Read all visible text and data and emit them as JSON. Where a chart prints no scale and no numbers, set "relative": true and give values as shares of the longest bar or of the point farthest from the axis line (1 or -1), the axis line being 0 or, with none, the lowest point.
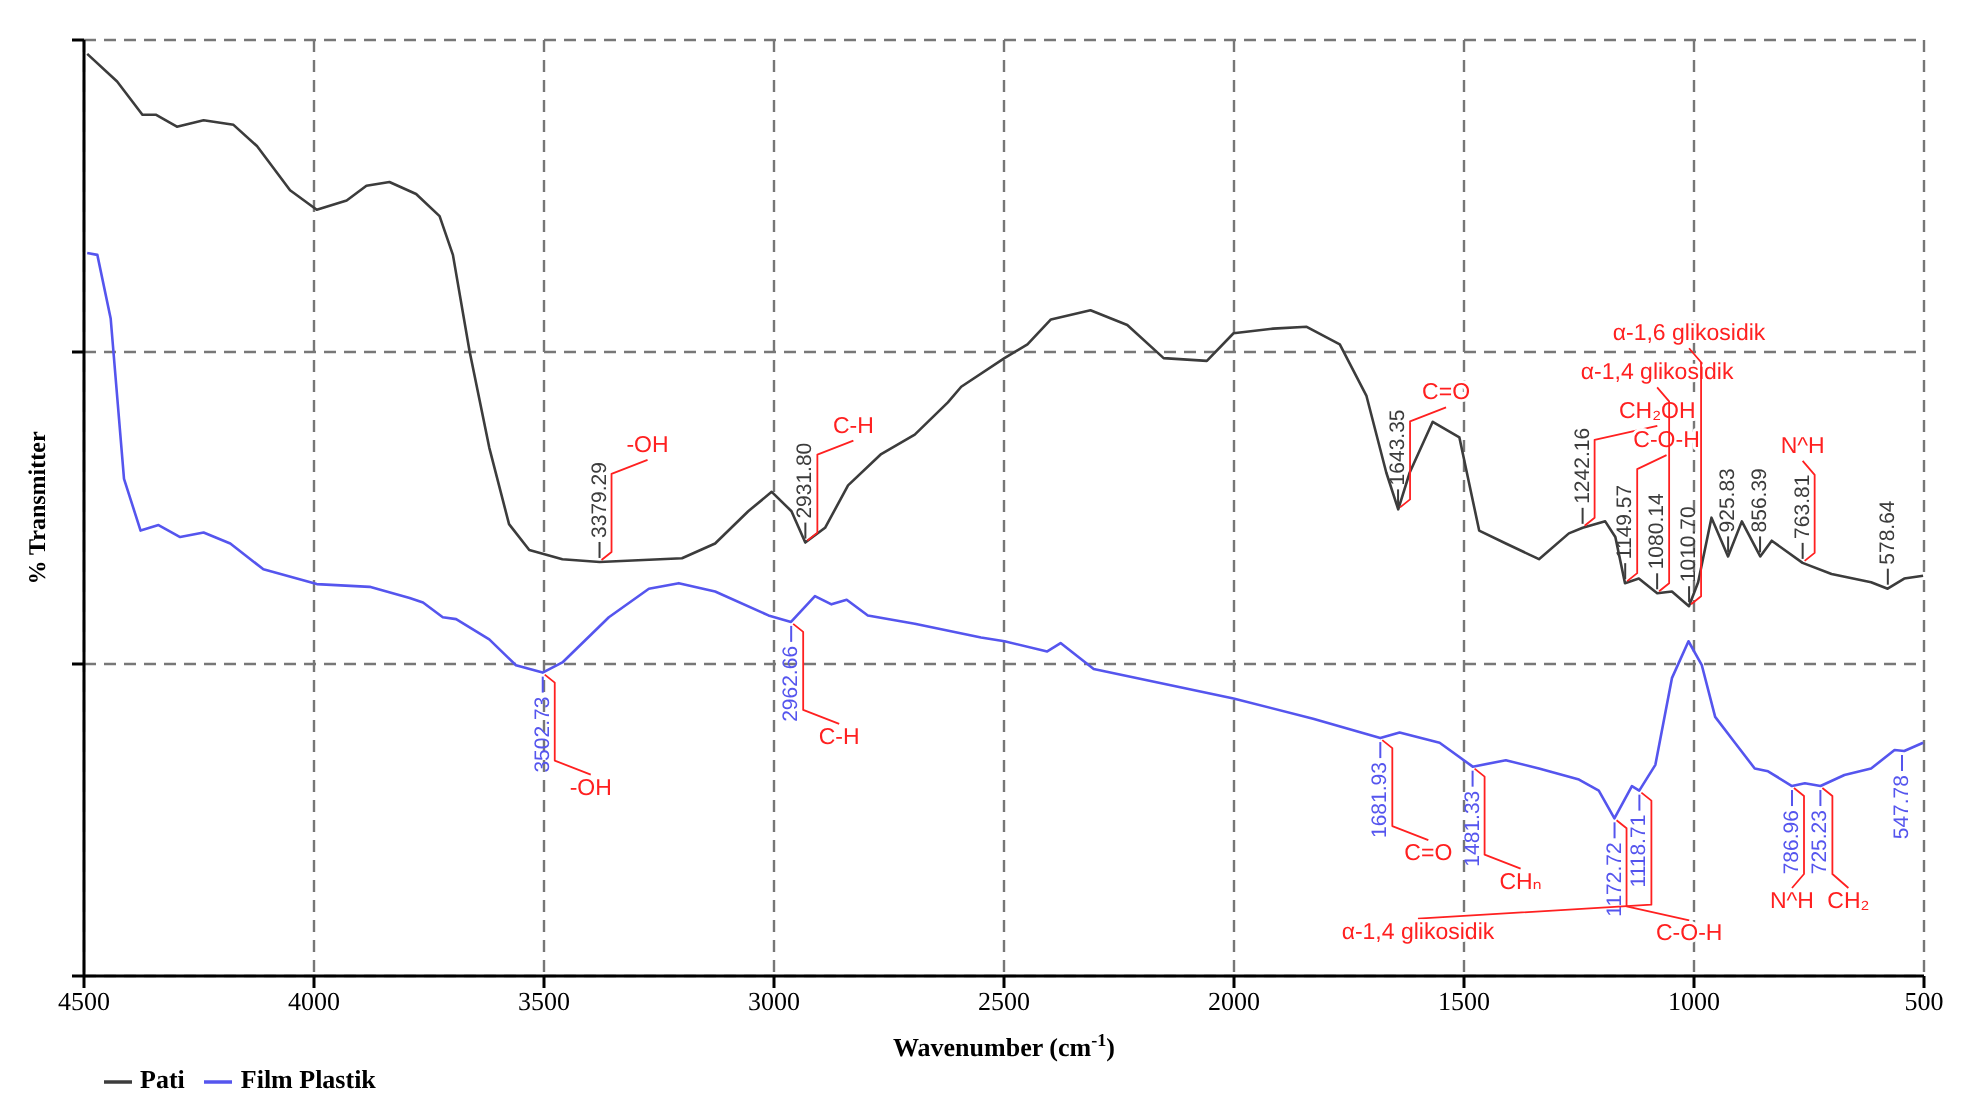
{
  "chart_data": {
    "type": "line",
    "relative": true,
    "xlabel": "Wavenumber (cm$^{-1}$)",
    "ylabel": "% Transmitter",
    "xlim": [
      4500,
      500
    ],
    "xticks": [
      4500,
      4000,
      3500,
      3000,
      2500,
      2000,
      1500,
      1000,
      500
    ],
    "grid": true,
    "legend": "bottom left",
    "series": [
      {
        "name": "Pati",
        "color": "#3c3c3c",
        "x": [
          4493,
          4428,
          4373,
          4344,
          4298,
          4240,
          4175,
          4124,
          4052,
          3994,
          3929,
          3886,
          3836,
          3778,
          3727,
          3698,
          3662,
          3619,
          3576,
          3532,
          3460,
          3379,
          3200,
          3128,
          3056,
          3005,
          2962,
          2932,
          2889,
          2839,
          2767,
          2694,
          2622,
          2593,
          2499,
          2449,
          2398,
          2312,
          2232,
          2153,
          2059,
          2001,
          1915,
          1842,
          1770,
          1712,
          1669,
          1643,
          1618,
          1568,
          1510,
          1467,
          1409,
          1337,
          1272,
          1242,
          1193,
          1171,
          1150,
          1120,
          1080,
          1048,
          1011,
          991,
          962,
          926,
          896,
          856,
          831,
          764,
          701,
          615,
          579,
          543,
          502
        ],
        "values": [
          1.0,
          0.97,
          0.934,
          0.934,
          0.921,
          0.928,
          0.923,
          0.9,
          0.852,
          0.831,
          0.841,
          0.857,
          0.861,
          0.848,
          0.824,
          0.782,
          0.678,
          0.573,
          0.49,
          0.462,
          0.452,
          0.449,
          0.453,
          0.469,
          0.504,
          0.525,
          0.504,
          0.47,
          0.486,
          0.532,
          0.566,
          0.587,
          0.622,
          0.639,
          0.67,
          0.685,
          0.712,
          0.722,
          0.706,
          0.67,
          0.667,
          0.697,
          0.702,
          0.704,
          0.685,
          0.629,
          0.546,
          0.506,
          0.546,
          0.601,
          0.584,
          0.483,
          0.469,
          0.452,
          0.48,
          0.486,
          0.493,
          0.476,
          0.426,
          0.431,
          0.415,
          0.417,
          0.401,
          0.427,
          0.497,
          0.455,
          0.493,
          0.455,
          0.472,
          0.448,
          0.436,
          0.427,
          0.42,
          0.431,
          0.434
        ]
      },
      {
        "name": "Film Plastik",
        "color": "#5555ee",
        "x": [
          4493,
          4471,
          4442,
          4413,
          4377,
          4338,
          4291,
          4240,
          4182,
          4110,
          3994,
          3879,
          3792,
          3763,
          3720,
          3691,
          3619,
          3561,
          3503,
          3460,
          3359,
          3272,
          3207,
          3128,
          3012,
          2963,
          2911,
          2875,
          2842,
          2796,
          2694,
          2550,
          2499,
          2406,
          2377,
          2305,
          2001,
          1828,
          1682,
          1640,
          1553,
          1481,
          1409,
          1337,
          1250,
          1207,
          1173,
          1135,
          1119,
          1084,
          1048,
          1012,
          983,
          954,
          911,
          868,
          839,
          787,
          759,
          725,
          673,
          615,
          564,
          543,
          502
        ],
        "values": [
          0.784,
          0.782,
          0.713,
          0.539,
          0.483,
          0.489,
          0.476,
          0.481,
          0.469,
          0.441,
          0.425,
          0.422,
          0.41,
          0.405,
          0.389,
          0.387,
          0.365,
          0.337,
          0.329,
          0.34,
          0.389,
          0.42,
          0.426,
          0.417,
          0.391,
          0.384,
          0.412,
          0.403,
          0.408,
          0.391,
          0.382,
          0.367,
          0.363,
          0.352,
          0.361,
          0.333,
          0.301,
          0.279,
          0.258,
          0.264,
          0.253,
          0.227,
          0.234,
          0.225,
          0.213,
          0.201,
          0.171,
          0.206,
          0.201,
          0.229,
          0.323,
          0.363,
          0.337,
          0.281,
          0.253,
          0.225,
          0.222,
          0.206,
          0.209,
          0.206,
          0.218,
          0.225,
          0.245,
          0.244,
          0.253
        ]
      }
    ],
    "annotations": [
      {
        "text": "3379.29",
        "x": 3379.29,
        "y": 0.449
      },
      {
        "text": "2931.80",
        "x": 2931.8,
        "y": 0.47
      },
      {
        "text": "1643.35",
        "x": 1643.35,
        "y": 0.506
      },
      {
        "text": "1242.16",
        "x": 1242.16,
        "y": 0.486
      },
      {
        "text": "1149.57",
        "x": 1149.57,
        "y": 0.426
      },
      {
        "text": "1080.14",
        "x": 1080.14,
        "y": 0.415
      },
      {
        "text": "1010.70",
        "x": 1010.7,
        "y": 0.401
      },
      {
        "text": "925.83",
        "x": 925.83,
        "y": 0.455
      },
      {
        "text": "856.39",
        "x": 856.39,
        "y": 0.455
      },
      {
        "text": "763.81",
        "x": 763.81,
        "y": 0.448
      },
      {
        "text": "578.64",
        "x": 578.64,
        "y": 0.42
      },
      {
        "text": "-OH",
        "x": 3379.29,
        "y": 0.449
      },
      {
        "text": "C-H",
        "x": 2931.8,
        "y": 0.47
      },
      {
        "text": "C=O",
        "x": 1643.35,
        "y": 0.506
      },
      {
        "text": "CH₂OH",
        "x": 1242.16,
        "y": 0.486
      },
      {
        "text": "C-O-H",
        "x": 1149.57,
        "y": 0.426
      },
      {
        "text": "α-1,4 glikosidik",
        "x": 1080.14,
        "y": 0.415
      },
      {
        "text": "α-1,6 glikosidik",
        "x": 1010.7,
        "y": 0.401
      },
      {
        "text": "N^H",
        "x": 763.81,
        "y": 0.448
      },
      {
        "text": "3502.73",
        "x": 3502.73,
        "y": 0.329
      },
      {
        "text": "2962.66",
        "x": 2962.66,
        "y": 0.384
      },
      {
        "text": "1681.93",
        "x": 1681.93,
        "y": 0.258
      },
      {
        "text": "1481.33",
        "x": 1481.33,
        "y": 0.227
      },
      {
        "text": "1172.72",
        "x": 1172.72,
        "y": 0.171
      },
      {
        "text": "1118.71",
        "x": 1118.71,
        "y": 0.201
      },
      {
        "text": "786.96",
        "x": 786.96,
        "y": 0.206
      },
      {
        "text": "725.23",
        "x": 725.23,
        "y": 0.206
      },
      {
        "text": "547.78",
        "x": 547.78,
        "y": 0.244
      },
      {
        "text": "-OH",
        "x": 3502.73,
        "y": 0.329
      },
      {
        "text": "C-H",
        "x": 2962.66,
        "y": 0.384
      },
      {
        "text": "C=O",
        "x": 1681.93,
        "y": 0.258
      },
      {
        "text": "CHₙ",
        "x": 1481.33,
        "y": 0.227
      },
      {
        "text": "C-O-H",
        "x": 1172.72,
        "y": 0.171
      },
      {
        "text": "α-1,4 glikosidik",
        "x": 1118.71,
        "y": 0.201
      },
      {
        "text": "N^H",
        "x": 786.96,
        "y": 0.206
      },
      {
        "text": "CH₂",
        "x": 725.23,
        "y": 0.206
      }
    ]
  }
}
